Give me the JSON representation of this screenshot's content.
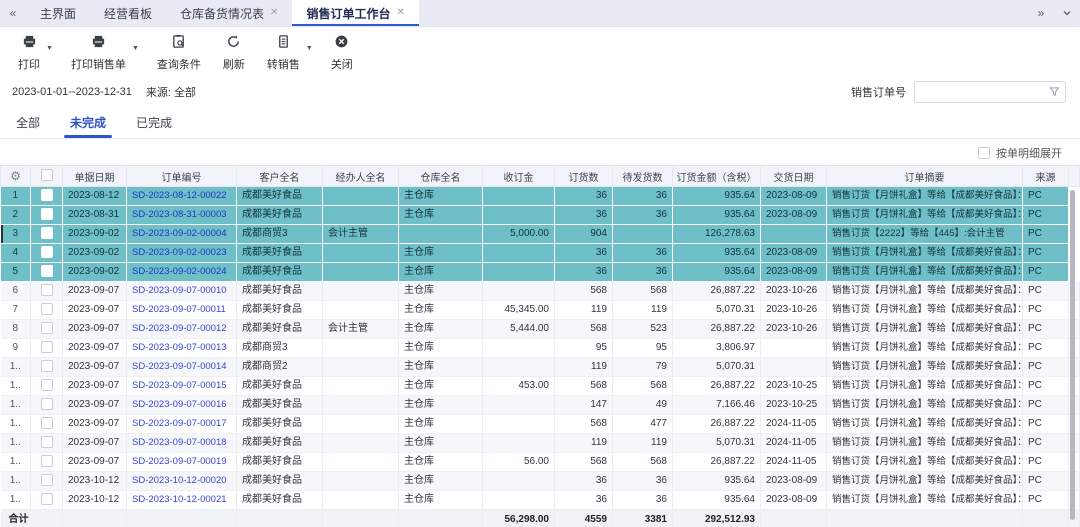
{
  "tab_bar": {
    "collapse_icon": "«",
    "expand_icon": "»",
    "tabs": [
      {
        "label": "主界面",
        "closable": false,
        "active": false
      },
      {
        "label": "经营看板",
        "closable": false,
        "active": false
      },
      {
        "label": "仓库备货情况表",
        "closable": true,
        "active": false
      },
      {
        "label": "销售订单工作台",
        "closable": true,
        "active": true
      }
    ]
  },
  "toolbar": {
    "print": "打印",
    "print_sales": "打印销售单",
    "query": "查询条件",
    "refresh": "刷新",
    "transfer": "转销售",
    "close": "关闭"
  },
  "filters": {
    "date_range": "2023-01-01--2023-12-31",
    "source": "来源: 全部",
    "order_no_label": "销售订单号",
    "order_no_value": ""
  },
  "status_tabs": {
    "all": "全部",
    "unfinished": "未完成",
    "finished": "已完成",
    "active": "未完成"
  },
  "options": {
    "expand_by_detail_label": "按单明细展开",
    "checked": false
  },
  "table": {
    "columns": [
      "单据日期",
      "订单编号",
      "客户全名",
      "经办人全名",
      "仓库全名",
      "收订金",
      "订货数",
      "待发货数",
      "订货金额（含税）",
      "交货日期",
      "订单摘要",
      "来源"
    ],
    "rows": [
      {
        "num": "1",
        "date": "2023-08-12",
        "order": "SD-2023-08-12-00022",
        "customer": "成都美好食品",
        "agent": "",
        "warehouse": "主仓库",
        "deposit": "",
        "qty": "36",
        "pending": "36",
        "amount": "935.64",
        "delivery": "2023-08-09",
        "summary": "销售订货【月饼礼盒】等给【成都美好食品】：",
        "source": "PC",
        "selected": true,
        "current": false
      },
      {
        "num": "2",
        "date": "2023-08-31",
        "order": "SD-2023-08-31-00003",
        "customer": "成都美好食品",
        "agent": "",
        "warehouse": "主仓库",
        "deposit": "",
        "qty": "36",
        "pending": "36",
        "amount": "935.64",
        "delivery": "2023-08-09",
        "summary": "销售订货【月饼礼盒】等给【成都美好食品】：",
        "source": "PC",
        "selected": true,
        "current": false
      },
      {
        "num": "3",
        "date": "2023-09-02",
        "order": "SD-2023-09-02-00004",
        "customer": "成都商贸3",
        "agent": "会计主管",
        "warehouse": "",
        "deposit": "5,000.00",
        "qty": "904",
        "pending": "",
        "amount": "126,278.63",
        "delivery": "",
        "summary": "销售订货【2222】等给【445】:会计主管",
        "source": "PC",
        "selected": true,
        "current": true
      },
      {
        "num": "4",
        "date": "2023-09-02",
        "order": "SD-2023-09-02-00023",
        "customer": "成都美好食品",
        "agent": "",
        "warehouse": "主仓库",
        "deposit": "",
        "qty": "36",
        "pending": "36",
        "amount": "935.64",
        "delivery": "2023-08-09",
        "summary": "销售订货【月饼礼盒】等给【成都美好食品】：",
        "source": "PC",
        "selected": true,
        "current": false
      },
      {
        "num": "5",
        "date": "2023-09-02",
        "order": "SD-2023-09-02-00024",
        "customer": "成都美好食品",
        "agent": "",
        "warehouse": "主仓库",
        "deposit": "",
        "qty": "36",
        "pending": "36",
        "amount": "935.64",
        "delivery": "2023-08-09",
        "summary": "销售订货【月饼礼盒】等给【成都美好食品】：",
        "source": "PC",
        "selected": true,
        "current": false
      },
      {
        "num": "6",
        "date": "2023-09-07",
        "order": "SD-2023-09-07-00010",
        "customer": "成都美好食品",
        "agent": "",
        "warehouse": "主仓库",
        "deposit": "",
        "qty": "568",
        "pending": "568",
        "amount": "26,887.22",
        "delivery": "2023-10-26",
        "summary": "销售订货【月饼礼盒】等给【成都美好食品】：",
        "source": "PC",
        "selected": false,
        "current": false
      },
      {
        "num": "7",
        "date": "2023-09-07",
        "order": "SD-2023-09-07-00011",
        "customer": "成都美好食品",
        "agent": "",
        "warehouse": "主仓库",
        "deposit": "45,345.00",
        "qty": "119",
        "pending": "119",
        "amount": "5,070.31",
        "delivery": "2023-10-26",
        "summary": "销售订货【月饼礼盒】等给【成都美好食品】：",
        "source": "PC",
        "selected": false,
        "current": false
      },
      {
        "num": "8",
        "date": "2023-09-07",
        "order": "SD-2023-09-07-00012",
        "customer": "成都美好食品",
        "agent": "会计主管",
        "warehouse": "主仓库",
        "deposit": "5,444.00",
        "qty": "568",
        "pending": "523",
        "amount": "26,887.22",
        "delivery": "2023-10-26",
        "summary": "销售订货【月饼礼盒】等给【成都美好食品】：",
        "source": "PC",
        "selected": false,
        "current": false
      },
      {
        "num": "9",
        "date": "2023-09-07",
        "order": "SD-2023-09-07-00013",
        "customer": "成都商贸3",
        "agent": "",
        "warehouse": "主仓库",
        "deposit": "",
        "qty": "95",
        "pending": "95",
        "amount": "3,806.97",
        "delivery": "",
        "summary": "销售订货【月饼礼盒】等给【成都美好食品】：",
        "source": "PC",
        "selected": false,
        "current": false
      },
      {
        "num": "1..",
        "date": "2023-09-07",
        "order": "SD-2023-09-07-00014",
        "customer": "成都商贸2",
        "agent": "",
        "warehouse": "主仓库",
        "deposit": "",
        "qty": "119",
        "pending": "79",
        "amount": "5,070.31",
        "delivery": "",
        "summary": "销售订货【月饼礼盒】等给【成都美好食品】：",
        "source": "PC",
        "selected": false,
        "current": false
      },
      {
        "num": "1..",
        "date": "2023-09-07",
        "order": "SD-2023-09-07-00015",
        "customer": "成都美好食品",
        "agent": "",
        "warehouse": "主仓库",
        "deposit": "453.00",
        "qty": "568",
        "pending": "568",
        "amount": "26,887.22",
        "delivery": "2023-10-25",
        "summary": "销售订货【月饼礼盒】等给【成都美好食品】：",
        "source": "PC",
        "selected": false,
        "current": false
      },
      {
        "num": "1..",
        "date": "2023-09-07",
        "order": "SD-2023-09-07-00016",
        "customer": "成都美好食品",
        "agent": "",
        "warehouse": "主仓库",
        "deposit": "",
        "qty": "147",
        "pending": "49",
        "amount": "7,166.46",
        "delivery": "2023-10-25",
        "summary": "销售订货【月饼礼盒】等给【成都美好食品】：",
        "source": "PC",
        "selected": false,
        "current": false
      },
      {
        "num": "1..",
        "date": "2023-09-07",
        "order": "SD-2023-09-07-00017",
        "customer": "成都美好食品",
        "agent": "",
        "warehouse": "主仓库",
        "deposit": "",
        "qty": "568",
        "pending": "477",
        "amount": "26,887.22",
        "delivery": "2024-11-05",
        "summary": "销售订货【月饼礼盒】等给【成都美好食品】：",
        "source": "PC",
        "selected": false,
        "current": false
      },
      {
        "num": "1..",
        "date": "2023-09-07",
        "order": "SD-2023-09-07-00018",
        "customer": "成都美好食品",
        "agent": "",
        "warehouse": "主仓库",
        "deposit": "",
        "qty": "119",
        "pending": "119",
        "amount": "5,070.31",
        "delivery": "2024-11-05",
        "summary": "销售订货【月饼礼盒】等给【成都美好食品】：",
        "source": "PC",
        "selected": false,
        "current": false
      },
      {
        "num": "1..",
        "date": "2023-09-07",
        "order": "SD-2023-09-07-00019",
        "customer": "成都美好食品",
        "agent": "",
        "warehouse": "主仓库",
        "deposit": "56.00",
        "qty": "568",
        "pending": "568",
        "amount": "26,887.22",
        "delivery": "2024-11-05",
        "summary": "销售订货【月饼礼盒】等给【成都美好食品】：",
        "source": "PC",
        "selected": false,
        "current": false
      },
      {
        "num": "1..",
        "date": "2023-10-12",
        "order": "SD-2023-10-12-00020",
        "customer": "成都美好食品",
        "agent": "",
        "warehouse": "主仓库",
        "deposit": "",
        "qty": "36",
        "pending": "36",
        "amount": "935.64",
        "delivery": "2023-08-09",
        "summary": "销售订货【月饼礼盒】等给【成都美好食品】：",
        "source": "PC",
        "selected": false,
        "current": false
      },
      {
        "num": "1..",
        "date": "2023-10-12",
        "order": "SD-2023-10-12-00021",
        "customer": "成都美好食品",
        "agent": "",
        "warehouse": "主仓库",
        "deposit": "",
        "qty": "36",
        "pending": "36",
        "amount": "935.64",
        "delivery": "2023-08-09",
        "summary": "销售订货【月饼礼盒】等给【成都美好食品】：",
        "source": "PC",
        "selected": false,
        "current": false
      }
    ],
    "total": {
      "label": "合计",
      "deposit": "56,298.00",
      "qty": "4559",
      "pending": "3381",
      "amount": "292,512.93"
    }
  }
}
